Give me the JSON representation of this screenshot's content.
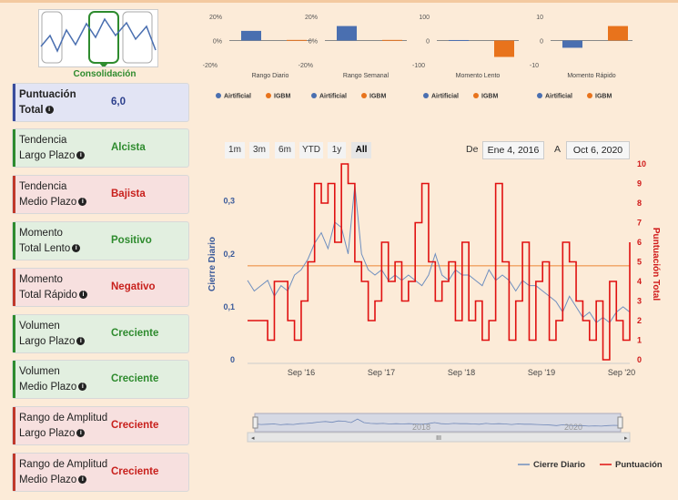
{
  "logo": {
    "label": "Consolidación"
  },
  "cards": [
    {
      "l1": "Puntuación",
      "l2": "Total",
      "value": "6,0",
      "tone": "blue",
      "bold": true
    },
    {
      "l1": "Tendencia",
      "l2": "Largo Plazo",
      "value": "Alcista",
      "tone": "green"
    },
    {
      "l1": "Tendencia",
      "l2": "Medio Plazo",
      "value": "Bajista",
      "tone": "red"
    },
    {
      "l1": "Momento",
      "l2": "Total Lento",
      "value": "Positivo",
      "tone": "green"
    },
    {
      "l1": "Momento",
      "l2": "Total Rápido",
      "value": "Negativo",
      "tone": "red"
    },
    {
      "l1": "Volumen",
      "l2": "Largo Plazo",
      "value": "Creciente",
      "tone": "green"
    },
    {
      "l1": "Volumen",
      "l2": "Medio Plazo",
      "value": "Creciente",
      "tone": "green"
    },
    {
      "l1": "Rango de Amplitud",
      "l2": "Largo Plazo",
      "value": "Creciente",
      "tone": "red"
    },
    {
      "l1": "Rango de Amplitud",
      "l2": "Medio Plazo",
      "value": "Creciente",
      "tone": "red"
    }
  ],
  "range_selector": {
    "buttons": [
      "1m",
      "3m",
      "6m",
      "YTD",
      "1y",
      "All"
    ],
    "selected": "All",
    "from_label": "De",
    "from": "Ene 4, 2016",
    "to_label": "A",
    "to": "Oct 6, 2020"
  },
  "colors": {
    "artificial": "#4a6fb0",
    "igbm": "#e8731c",
    "cierre": "#6f8fbf",
    "puntuacion": "#e01010"
  },
  "navigator": {
    "labels": [
      "2018",
      "2020"
    ]
  },
  "chart_data": [
    {
      "type": "bar",
      "title": "Rango Diario",
      "yticks": [
        "20%",
        "0%",
        "-20%"
      ],
      "ylim": [
        -20,
        20
      ],
      "series": [
        {
          "name": "Airtificial",
          "values": [
            8
          ]
        },
        {
          "name": "IGBM",
          "values": [
            0.5
          ]
        }
      ]
    },
    {
      "type": "bar",
      "title": "Rango Semanal",
      "yticks": [
        "20%",
        "0%",
        "-20%"
      ],
      "ylim": [
        -20,
        20
      ],
      "series": [
        {
          "name": "Airtificial",
          "values": [
            12
          ]
        },
        {
          "name": "IGBM",
          "values": [
            0.5
          ]
        }
      ]
    },
    {
      "type": "bar",
      "title": "Momento Lento",
      "yticks": [
        "100",
        "0",
        "-100"
      ],
      "ylim": [
        -100,
        100
      ],
      "series": [
        {
          "name": "Airtificial",
          "values": [
            2
          ]
        },
        {
          "name": "IGBM",
          "values": [
            -68
          ]
        }
      ]
    },
    {
      "type": "bar",
      "title": "Momento Rápido",
      "yticks": [
        "10",
        "0",
        "-10"
      ],
      "ylim": [
        -10,
        10
      ],
      "series": [
        {
          "name": "Airtificial",
          "values": [
            -3
          ]
        },
        {
          "name": "IGBM",
          "values": [
            6
          ]
        }
      ]
    },
    {
      "type": "line",
      "ylabel": "Cierre Diario",
      "y2label": "Puntuación Total",
      "ylim": [
        0,
        0.37
      ],
      "y2lim": [
        0,
        10
      ],
      "yticks": [
        "0",
        "0,1",
        "0,2",
        "0,3"
      ],
      "y2ticks": [
        "0",
        "1",
        "2",
        "3",
        "4",
        "5",
        "6",
        "7",
        "8",
        "9",
        "10"
      ],
      "xticks": [
        "Sep '16",
        "Sep '17",
        "Sep '18",
        "Sep '19",
        "Sep '20"
      ],
      "plotline_y2": 4.8,
      "series": [
        {
          "name": "Cierre Diario",
          "axis": "left",
          "x": [
            0,
            1,
            2,
            3,
            4,
            5,
            6,
            7,
            8,
            9,
            10,
            11,
            12,
            13,
            14,
            15,
            16,
            17,
            18,
            19,
            20,
            21,
            22,
            23,
            24,
            25,
            26,
            27,
            28,
            29,
            30,
            31,
            32,
            33,
            34,
            35,
            36,
            37,
            38,
            39,
            40,
            41,
            42,
            43,
            44,
            45,
            46,
            47,
            48,
            49,
            50,
            51,
            52,
            53,
            54,
            55,
            56,
            57
          ],
          "y": [
            0.15,
            0.13,
            0.14,
            0.15,
            0.12,
            0.14,
            0.13,
            0.16,
            0.17,
            0.19,
            0.22,
            0.24,
            0.21,
            0.26,
            0.25,
            0.2,
            0.33,
            0.2,
            0.17,
            0.16,
            0.17,
            0.15,
            0.16,
            0.15,
            0.16,
            0.15,
            0.14,
            0.16,
            0.2,
            0.16,
            0.15,
            0.17,
            0.16,
            0.16,
            0.15,
            0.14,
            0.17,
            0.15,
            0.16,
            0.15,
            0.13,
            0.15,
            0.14,
            0.14,
            0.13,
            0.12,
            0.11,
            0.09,
            0.12,
            0.1,
            0.08,
            0.09,
            0.07,
            0.08,
            0.07,
            0.09,
            0.1,
            0.09
          ]
        },
        {
          "name": "Puntuación",
          "axis": "right",
          "x": [
            0,
            1,
            2,
            3,
            4,
            5,
            6,
            7,
            8,
            9,
            10,
            11,
            12,
            13,
            14,
            15,
            16,
            17,
            18,
            19,
            20,
            21,
            22,
            23,
            24,
            25,
            26,
            27,
            28,
            29,
            30,
            31,
            32,
            33,
            34,
            35,
            36,
            37,
            38,
            39,
            40,
            41,
            42,
            43,
            44,
            45,
            46,
            47,
            48,
            49,
            50,
            51,
            52,
            53,
            54,
            55,
            56,
            57
          ],
          "y": [
            2,
            2,
            2,
            1,
            4,
            4,
            2,
            1,
            3,
            5,
            9,
            8,
            9,
            6,
            10,
            9,
            5,
            4,
            2,
            3,
            6,
            4,
            5,
            3,
            4,
            7,
            9,
            5,
            3,
            4,
            5,
            2,
            6,
            2,
            3,
            1,
            2,
            9,
            5,
            1,
            3,
            6,
            1,
            4,
            5,
            1,
            2,
            6,
            5,
            3,
            2,
            1,
            3,
            0,
            4,
            2,
            1,
            6
          ]
        }
      ]
    }
  ],
  "legend": {
    "cierre": "Cierre Diario",
    "puntuacion": "Puntuación"
  }
}
